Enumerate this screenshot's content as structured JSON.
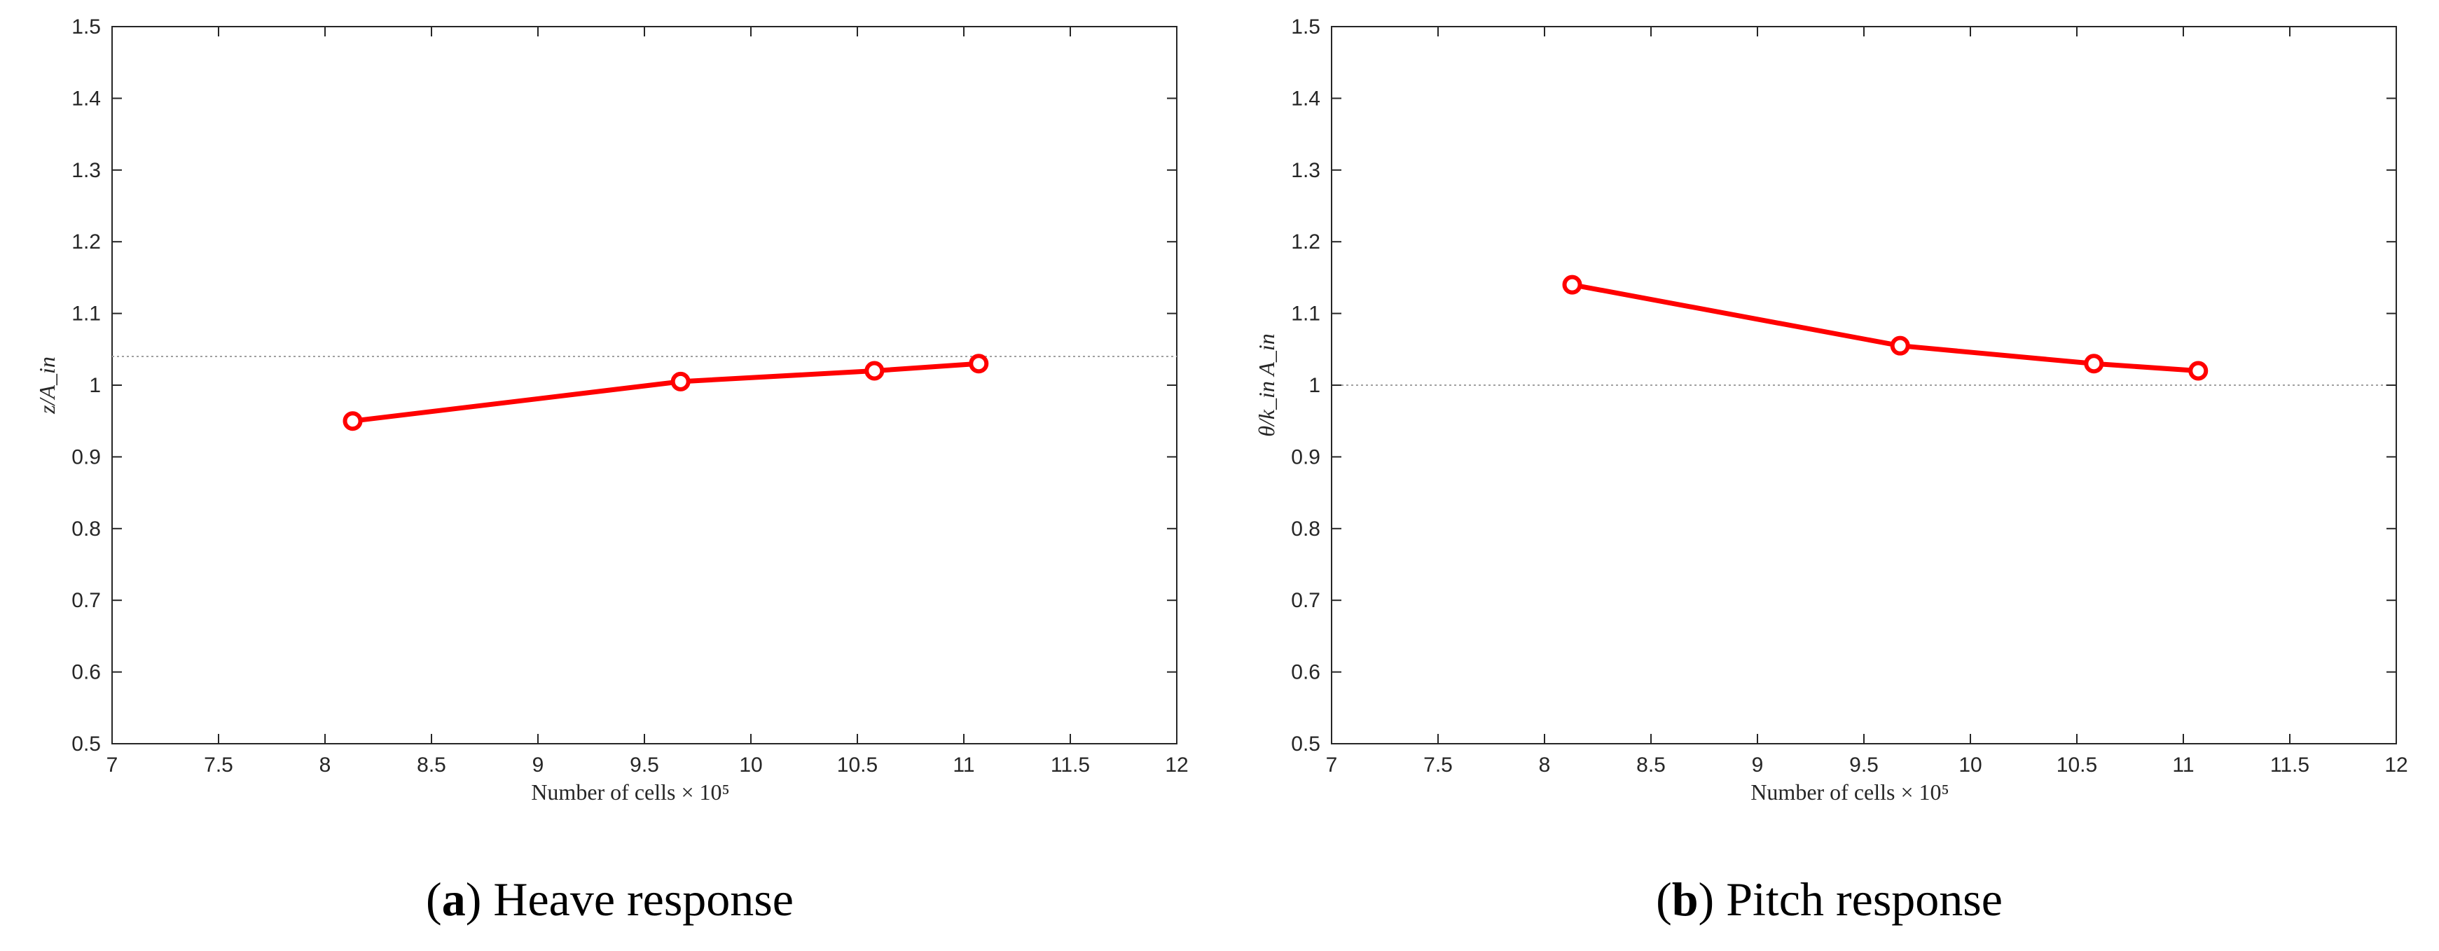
{
  "chart_data": [
    {
      "type": "line",
      "id": "a",
      "xlabel": "Number of cells × 10⁵",
      "ylabel": "z/A_in",
      "xlim": [
        7,
        12
      ],
      "ylim": [
        0.5,
        1.5
      ],
      "xticks": [
        "7",
        "7.5",
        "8",
        "8.5",
        "9",
        "9.5",
        "10",
        "10.5",
        "11",
        "11.5",
        "12"
      ],
      "yticks": [
        "0.5",
        "0.6",
        "0.7",
        "0.8",
        "0.9",
        "1",
        "1.1",
        "1.2",
        "1.3",
        "1.4",
        "1.5"
      ],
      "grid": false,
      "reference_line": 1.04,
      "series": [
        {
          "color": "#ff0000",
          "marker": "circle",
          "x": [
            8.13,
            9.67,
            10.58,
            11.07
          ],
          "y": [
            0.95,
            1.005,
            1.02,
            1.03
          ]
        }
      ],
      "caption_letter": "a",
      "caption_text": "Heave response"
    },
    {
      "type": "line",
      "id": "b",
      "xlabel": "Number of cells × 10⁵",
      "ylabel": "θ/k_in A_in",
      "xlim": [
        7,
        12
      ],
      "ylim": [
        0.5,
        1.5
      ],
      "xticks": [
        "7",
        "7.5",
        "8",
        "8.5",
        "9",
        "9.5",
        "10",
        "10.5",
        "11",
        "11.5",
        "12"
      ],
      "yticks": [
        "0.5",
        "0.6",
        "0.7",
        "0.8",
        "0.9",
        "1",
        "1.1",
        "1.2",
        "1.3",
        "1.4",
        "1.5"
      ],
      "grid": false,
      "reference_line": 1.0,
      "series": [
        {
          "color": "#ff0000",
          "marker": "circle",
          "x": [
            8.13,
            9.67,
            10.58,
            11.07
          ],
          "y": [
            1.14,
            1.055,
            1.03,
            1.02
          ]
        }
      ],
      "caption_letter": "b",
      "caption_text": "Pitch response"
    }
  ],
  "colors": {
    "series": "#ff0000",
    "axis": "#262626",
    "reference": "#a0a0a0"
  }
}
